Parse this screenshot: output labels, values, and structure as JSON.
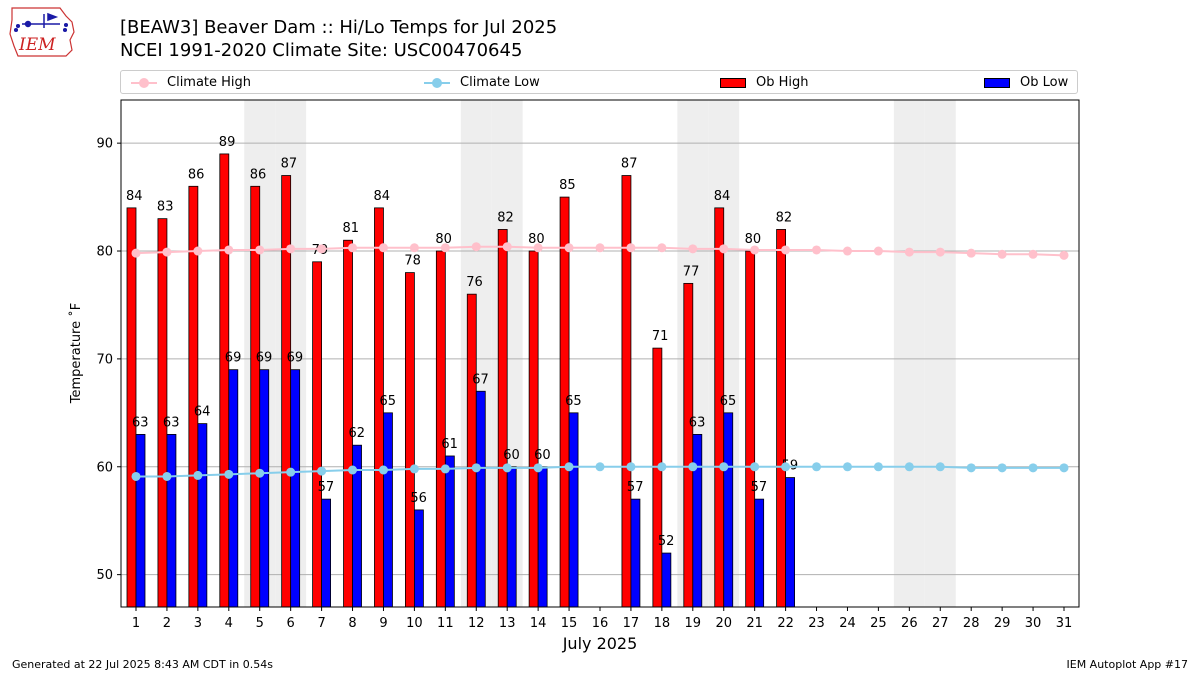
{
  "header": {
    "title": "[BEAW3] Beaver Dam :: Hi/Lo Temps for Jul 2025",
    "subtitle": "NCEI 1991-2020 Climate Site: USC00470645",
    "logo_text": "IEM"
  },
  "footer": {
    "left": "Generated at 22 Jul 2025 8:43 AM CDT in 0.54s",
    "right": "IEM Autoplot App #17"
  },
  "legend": {
    "items": [
      {
        "label": "Climate High",
        "color": "#ffc0cb",
        "kind": "line"
      },
      {
        "label": "Climate Low",
        "color": "#87ceeb",
        "kind": "line"
      },
      {
        "label": "Ob High",
        "color": "#ff0000",
        "kind": "bar"
      },
      {
        "label": "Ob Low",
        "color": "#0000ff",
        "kind": "bar"
      }
    ]
  },
  "chart_data": {
    "type": "bar",
    "title": "[BEAW3] Beaver Dam :: Hi/Lo Temps for Jul 2025",
    "subtitle": "NCEI 1991-2020 Climate Site: USC00470645",
    "xlabel": "July 2025",
    "ylabel": "Temperature ˚F",
    "ylim": [
      47,
      94
    ],
    "yticks": [
      50,
      60,
      70,
      80,
      90
    ],
    "grid": "horizontal",
    "legend_position": "top",
    "categories": [
      "1",
      "2",
      "3",
      "4",
      "5",
      "6",
      "7",
      "8",
      "9",
      "10",
      "11",
      "12",
      "13",
      "14",
      "15",
      "16",
      "17",
      "18",
      "19",
      "20",
      "21",
      "22",
      "23",
      "24",
      "25",
      "26",
      "27",
      "28",
      "29",
      "30",
      "31"
    ],
    "weekend_shaded_days": [
      5,
      6,
      12,
      13,
      19,
      20,
      26,
      27
    ],
    "series": [
      {
        "name": "Ob High",
        "type": "bar",
        "color": "#ff0000",
        "values": [
          84,
          83,
          86,
          89,
          86,
          87,
          79,
          81,
          84,
          78,
          80,
          76,
          82,
          80,
          85,
          null,
          87,
          71,
          77,
          84,
          80,
          82,
          null,
          null,
          null,
          null,
          null,
          null,
          null,
          null,
          null
        ]
      },
      {
        "name": "Ob Low",
        "type": "bar",
        "color": "#0000ff",
        "values": [
          63,
          63,
          64,
          69,
          69,
          69,
          57,
          62,
          65,
          56,
          61,
          67,
          60,
          60,
          65,
          null,
          57,
          52,
          63,
          65,
          57,
          59,
          null,
          null,
          null,
          null,
          null,
          null,
          null,
          null,
          null
        ]
      },
      {
        "name": "Climate High",
        "type": "line",
        "color": "#ffc0cb",
        "values": [
          79.8,
          79.9,
          80.0,
          80.1,
          80.1,
          80.2,
          80.2,
          80.3,
          80.3,
          80.3,
          80.3,
          80.4,
          80.4,
          80.3,
          80.3,
          80.3,
          80.3,
          80.3,
          80.2,
          80.2,
          80.1,
          80.1,
          80.1,
          80.0,
          80.0,
          79.9,
          79.9,
          79.8,
          79.7,
          79.7,
          79.6
        ]
      },
      {
        "name": "Climate Low",
        "type": "line",
        "color": "#87ceeb",
        "values": [
          59.1,
          59.1,
          59.2,
          59.3,
          59.4,
          59.5,
          59.6,
          59.7,
          59.7,
          59.8,
          59.8,
          59.9,
          59.9,
          59.9,
          60.0,
          60.0,
          60.0,
          60.0,
          60.0,
          60.0,
          60.0,
          60.0,
          60.0,
          60.0,
          60.0,
          60.0,
          60.0,
          59.9,
          59.9,
          59.9,
          59.9
        ]
      }
    ]
  }
}
